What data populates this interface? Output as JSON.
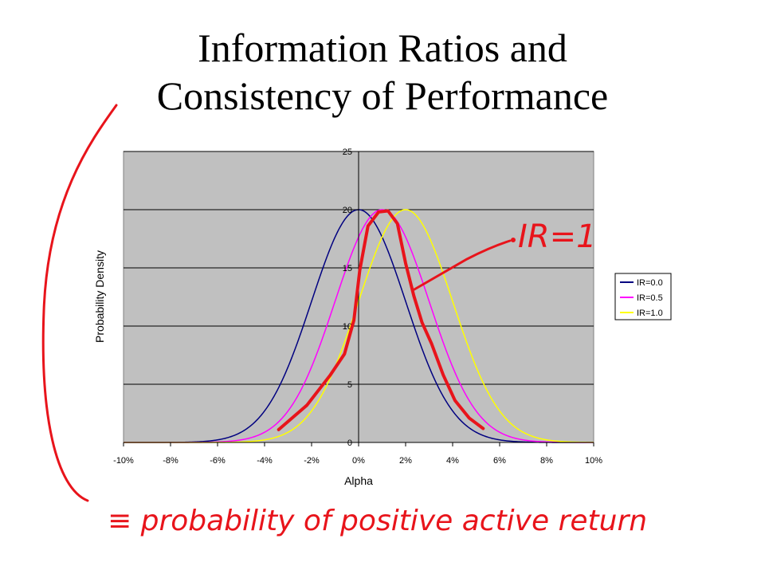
{
  "title": {
    "line1": "Information Ratios and",
    "line2": "Consistency of Performance"
  },
  "annotations": {
    "curve_label": "IR=1",
    "footnote": "≡  probability of positive active return",
    "ink_color": "#e8141b"
  },
  "chart_data": {
    "type": "line",
    "xlabel": "Alpha",
    "ylabel": "Probability Density",
    "xlim": [
      -0.1,
      0.1
    ],
    "ylim": [
      0,
      25
    ],
    "x_ticks": [
      -0.1,
      -0.08,
      -0.06,
      -0.04,
      -0.02,
      0.0,
      0.02,
      0.04,
      0.06,
      0.08,
      0.1
    ],
    "x_tick_labels": [
      "-10%",
      "-8%",
      "-6%",
      "-4%",
      "-2%",
      "0%",
      "2%",
      "4%",
      "6%",
      "8%",
      "10%"
    ],
    "y_ticks": [
      0,
      5,
      10,
      15,
      20,
      25
    ],
    "y_tick_labels": [
      "0",
      "5",
      "10",
      "15",
      "20",
      "25"
    ],
    "grid": "horizontal",
    "plot_background": "#c0c0c0",
    "legend_position": "right",
    "series": [
      {
        "name": "IR=0.0",
        "color": "#000080",
        "mean": 0.0,
        "sd": 0.02,
        "peak": 20
      },
      {
        "name": "IR=0.5",
        "color": "#ff00ff",
        "mean": 0.01,
        "sd": 0.02,
        "peak": 20
      },
      {
        "name": "IR=1.0",
        "color": "#ffff00",
        "mean": 0.02,
        "sd": 0.02,
        "peak": 20
      }
    ]
  }
}
